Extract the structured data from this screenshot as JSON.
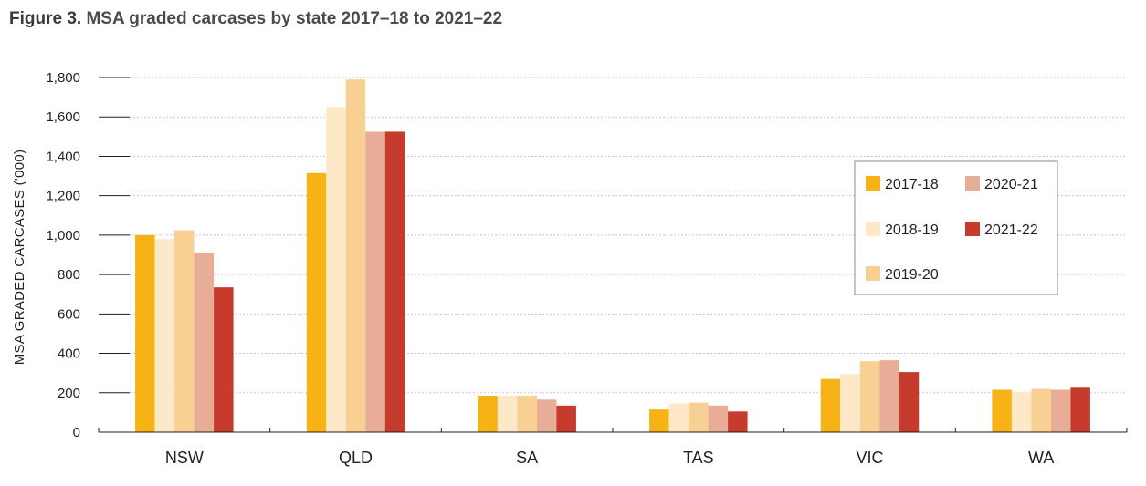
{
  "figure": {
    "number": "Figure 3.",
    "title": "MSA graded carcases by state 2017–18 to 2021–22"
  },
  "chart_data": {
    "type": "bar",
    "title": "MSA graded carcases by state 2017–18 to 2021–22",
    "xlabel": "",
    "ylabel": "MSA GRADED CARCASES ('000)",
    "ylim": [
      0,
      1800
    ],
    "yticks": [
      0,
      200,
      400,
      600,
      800,
      1000,
      1200,
      1400,
      1600,
      1800
    ],
    "ytick_labels": [
      "0",
      "200",
      "400",
      "600",
      "800",
      "1,000",
      "1,200",
      "1,400",
      "1,600",
      "1,800"
    ],
    "grid": true,
    "legend_position": "right",
    "categories": [
      "NSW",
      "QLD",
      "SA",
      "TAS",
      "VIC",
      "WA"
    ],
    "series": [
      {
        "name": "2017-18",
        "color": "#f7b215",
        "values": [
          1000,
          1315,
          185,
          115,
          270,
          215
        ]
      },
      {
        "name": "2018-19",
        "color": "#fde8c8",
        "values": [
          980,
          1650,
          185,
          145,
          295,
          205
        ]
      },
      {
        "name": "2019-20",
        "color": "#f8d093",
        "values": [
          1025,
          1790,
          185,
          150,
          360,
          220
        ]
      },
      {
        "name": "2020-21",
        "color": "#e8ad96",
        "values": [
          910,
          1525,
          165,
          135,
          365,
          215
        ]
      },
      {
        "name": "2021-22",
        "color": "#c63b2b",
        "values": [
          735,
          1525,
          135,
          105,
          305,
          230
        ]
      }
    ]
  }
}
